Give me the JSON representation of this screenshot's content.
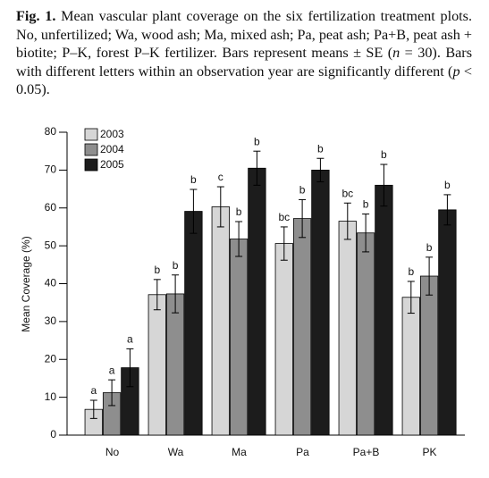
{
  "caption": {
    "label": "Fig. 1.",
    "runs": [
      "Mean vascular plant coverage on the six fertilization treatment plots. No, unfertilized; Wa, wood ash; Ma, mixed ash; Pa, peat ash; Pa+B, peat ash + biotite; P–K, forest P–K fertilizer. Bars represent means ± SE (",
      "n",
      " = 30). Bars with different letters within an observation year are significantly different (",
      "p",
      " < 0.05)."
    ]
  },
  "chart_data": {
    "type": "bar",
    "ylabel": "Mean Coverage (%)",
    "categories": [
      "No",
      "Wa",
      "Ma",
      "Pa",
      "Pa+B",
      "PK"
    ],
    "series": [
      {
        "name": "2003",
        "color": "#d6d6d6",
        "values": [
          6.8,
          37.1,
          60.3,
          50.6,
          56.5,
          36.4
        ],
        "errors": [
          2.4,
          4,
          5.3,
          4.4,
          4.8,
          4.2
        ],
        "letters": [
          "a",
          "b",
          "c",
          "bc",
          "bc",
          "b"
        ]
      },
      {
        "name": "2004",
        "color": "#8e8e8e",
        "values": [
          11.2,
          37.3,
          51.8,
          57.2,
          53.4,
          42
        ],
        "errors": [
          3.4,
          5,
          4.6,
          5,
          5,
          5
        ],
        "letters": [
          "a",
          "b",
          "b",
          "b",
          "b",
          "b"
        ]
      },
      {
        "name": "2005",
        "color": "#1c1c1c",
        "values": [
          17.8,
          59.1,
          70.5,
          70,
          66,
          59.5
        ],
        "errors": [
          5,
          5.8,
          4.5,
          3.1,
          5.5,
          4
        ],
        "letters": [
          "a",
          "b",
          "b",
          "b",
          "b",
          "b"
        ]
      }
    ],
    "ylim": [
      0,
      80
    ],
    "yticks": [
      0,
      10,
      20,
      30,
      40,
      50,
      60,
      70,
      80
    ],
    "legend": "upper-left"
  }
}
